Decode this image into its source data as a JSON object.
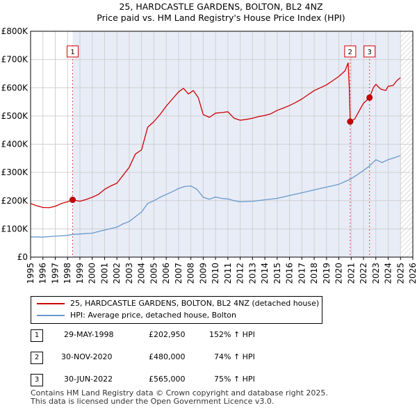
{
  "chart_data": {
    "type": "line",
    "title": "25, HARDCASTLE GARDENS, BOLTON, BL2 4NZ",
    "subtitle": "Price paid vs. HM Land Registry's House Price Index (HPI)",
    "xlim": [
      1995,
      2026
    ],
    "ylim": [
      0,
      800000
    ],
    "x_ticks": [
      "1995",
      "1996",
      "1997",
      "1998",
      "1999",
      "2000",
      "2001",
      "2002",
      "2003",
      "2004",
      "2005",
      "2006",
      "2007",
      "2008",
      "2009",
      "2010",
      "2011",
      "2012",
      "2013",
      "2014",
      "2015",
      "2016",
      "2017",
      "2018",
      "2019",
      "2020",
      "2021",
      "2022",
      "2023",
      "2024",
      "2025",
      "2026"
    ],
    "y_ticks": [
      {
        "value": 0,
        "label": "£0"
      },
      {
        "value": 100000,
        "label": "£100K"
      },
      {
        "value": 200000,
        "label": "£200K"
      },
      {
        "value": 300000,
        "label": "£300K"
      },
      {
        "value": 400000,
        "label": "£400K"
      },
      {
        "value": 500000,
        "label": "£500K"
      },
      {
        "value": 600000,
        "label": "£600K"
      },
      {
        "value": 700000,
        "label": "£700K"
      },
      {
        "value": 800000,
        "label": "£800K"
      }
    ],
    "grid": true,
    "ownership_span": [
      1998.41,
      2025.0
    ],
    "future_hatch_from": 2025.0,
    "series": [
      {
        "name": "25, HARDCASTLE GARDENS, BOLTON, BL2 4NZ (detached house)",
        "color": "#cc0000",
        "points": [
          [
            1995.0,
            190000
          ],
          [
            1995.5,
            182000
          ],
          [
            1996.0,
            176000
          ],
          [
            1996.5,
            175000
          ],
          [
            1997.0,
            180000
          ],
          [
            1997.5,
            190000
          ],
          [
            1998.0,
            196000
          ],
          [
            1998.41,
            202950
          ],
          [
            1999.0,
            198000
          ],
          [
            1999.5,
            204000
          ],
          [
            2000.0,
            212000
          ],
          [
            2000.5,
            222000
          ],
          [
            2001.0,
            240000
          ],
          [
            2001.5,
            252000
          ],
          [
            2002.0,
            262000
          ],
          [
            2002.5,
            290000
          ],
          [
            2003.0,
            318000
          ],
          [
            2003.5,
            365000
          ],
          [
            2004.0,
            380000
          ],
          [
            2004.5,
            460000
          ],
          [
            2005.0,
            480000
          ],
          [
            2005.5,
            505000
          ],
          [
            2006.0,
            535000
          ],
          [
            2006.5,
            560000
          ],
          [
            2007.0,
            585000
          ],
          [
            2007.4,
            598000
          ],
          [
            2007.8,
            578000
          ],
          [
            2008.2,
            590000
          ],
          [
            2008.6,
            565000
          ],
          [
            2009.0,
            505000
          ],
          [
            2009.5,
            495000
          ],
          [
            2010.0,
            510000
          ],
          [
            2010.5,
            512000
          ],
          [
            2011.0,
            515000
          ],
          [
            2011.5,
            492000
          ],
          [
            2012.0,
            485000
          ],
          [
            2012.5,
            488000
          ],
          [
            2013.0,
            492000
          ],
          [
            2013.5,
            498000
          ],
          [
            2014.0,
            502000
          ],
          [
            2014.5,
            508000
          ],
          [
            2015.0,
            520000
          ],
          [
            2015.5,
            528000
          ],
          [
            2016.0,
            537000
          ],
          [
            2016.5,
            548000
          ],
          [
            2017.0,
            560000
          ],
          [
            2017.5,
            575000
          ],
          [
            2018.0,
            590000
          ],
          [
            2018.5,
            600000
          ],
          [
            2019.0,
            610000
          ],
          [
            2019.5,
            625000
          ],
          [
            2020.0,
            640000
          ],
          [
            2020.5,
            660000
          ],
          [
            2020.75,
            688000
          ],
          [
            2020.85,
            600000
          ],
          [
            2020.92,
            480000
          ],
          [
            2021.3,
            490000
          ],
          [
            2021.7,
            522000
          ],
          [
            2022.0,
            545000
          ],
          [
            2022.49,
            565000
          ],
          [
            2022.8,
            600000
          ],
          [
            2023.0,
            612000
          ],
          [
            2023.4,
            595000
          ],
          [
            2023.8,
            590000
          ],
          [
            2024.0,
            605000
          ],
          [
            2024.4,
            608000
          ],
          [
            2024.7,
            625000
          ],
          [
            2025.0,
            636000
          ]
        ]
      },
      {
        "name": "HPI: Average price, detached house, Bolton",
        "color": "#6699cc",
        "points": [
          [
            1995.0,
            72000
          ],
          [
            1996.0,
            71000
          ],
          [
            1997.0,
            74000
          ],
          [
            1998.0,
            77000
          ],
          [
            1998.41,
            80500
          ],
          [
            1999.0,
            82000
          ],
          [
            2000.0,
            85000
          ],
          [
            2001.0,
            96000
          ],
          [
            2002.0,
            106000
          ],
          [
            2002.5,
            118000
          ],
          [
            2003.0,
            126000
          ],
          [
            2003.5,
            143000
          ],
          [
            2004.0,
            160000
          ],
          [
            2004.5,
            190000
          ],
          [
            2005.0,
            200000
          ],
          [
            2005.5,
            212000
          ],
          [
            2006.0,
            222000
          ],
          [
            2006.5,
            232000
          ],
          [
            2007.0,
            243000
          ],
          [
            2007.5,
            250000
          ],
          [
            2008.0,
            252000
          ],
          [
            2008.5,
            240000
          ],
          [
            2009.0,
            212000
          ],
          [
            2009.5,
            205000
          ],
          [
            2010.0,
            213000
          ],
          [
            2010.5,
            208000
          ],
          [
            2011.0,
            206000
          ],
          [
            2011.5,
            200000
          ],
          [
            2012.0,
            196000
          ],
          [
            2013.0,
            198000
          ],
          [
            2014.0,
            203000
          ],
          [
            2015.0,
            208000
          ],
          [
            2016.0,
            218000
          ],
          [
            2017.0,
            228000
          ],
          [
            2018.0,
            238000
          ],
          [
            2019.0,
            248000
          ],
          [
            2020.0,
            258000
          ],
          [
            2020.92,
            276000
          ],
          [
            2021.5,
            292000
          ],
          [
            2022.0,
            307000
          ],
          [
            2022.49,
            323000
          ],
          [
            2023.0,
            345000
          ],
          [
            2023.5,
            335000
          ],
          [
            2024.0,
            345000
          ],
          [
            2024.5,
            352000
          ],
          [
            2025.0,
            360000
          ]
        ]
      }
    ],
    "sales": [
      {
        "id": "1",
        "x": 1998.41,
        "price": 202950,
        "date": "29-MAY-1998",
        "price_label": "£202,950",
        "hpi": "152% ↑ HPI"
      },
      {
        "id": "2",
        "x": 2020.92,
        "price": 480000,
        "date": "30-NOV-2020",
        "price_label": "£480,000",
        "hpi": "74% ↑ HPI"
      },
      {
        "id": "3",
        "x": 2022.49,
        "price": 565000,
        "date": "30-JUN-2022",
        "price_label": "£565,000",
        "hpi": "75% ↑ HPI"
      }
    ]
  },
  "footer": {
    "line1": "Contains HM Land Registry data © Crown copyright and database right 2025.",
    "line2": "This data is licensed under the Open Government Licence v3.0."
  }
}
